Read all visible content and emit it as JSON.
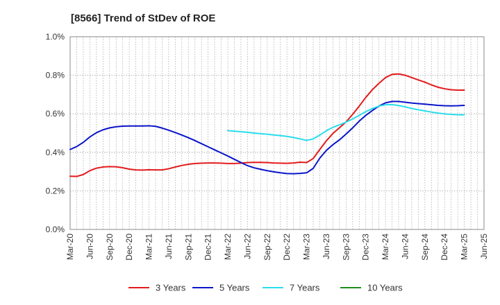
{
  "chart_data": {
    "type": "line",
    "title": "[8566]  Trend of StDev of ROE",
    "xlabel": "",
    "ylabel": "",
    "x_ticks": [
      "Mar-20",
      "Jun-20",
      "Sep-20",
      "Dec-20",
      "Mar-21",
      "Jun-21",
      "Sep-21",
      "Dec-21",
      "Mar-22",
      "Jun-22",
      "Sep-22",
      "Dec-22",
      "Mar-23",
      "Jun-23",
      "Sep-23",
      "Dec-23",
      "Mar-24",
      "Jun-24",
      "Sep-24",
      "Dec-24",
      "Mar-25",
      "Jun-25"
    ],
    "y_ticks": [
      "0.0%",
      "0.2%",
      "0.4%",
      "0.6%",
      "0.8%",
      "1.0%"
    ],
    "ylim": [
      0,
      1.0
    ],
    "grid": true,
    "legend_position": "bottom",
    "series": [
      {
        "name": "3 Years",
        "color": "#e31a1c",
        "points": [
          [
            "Mar-20",
            0.276
          ],
          [
            "Apr-20",
            0.275
          ],
          [
            "May-20",
            0.285
          ],
          [
            "Jun-20",
            0.305
          ],
          [
            "Jul-20",
            0.318
          ],
          [
            "Aug-20",
            0.324
          ],
          [
            "Sep-20",
            0.326
          ],
          [
            "Oct-20",
            0.325
          ],
          [
            "Nov-20",
            0.32
          ],
          [
            "Dec-20",
            0.313
          ],
          [
            "Jan-21",
            0.309
          ],
          [
            "Feb-21",
            0.308
          ],
          [
            "Mar-21",
            0.31
          ],
          [
            "Apr-21",
            0.309
          ],
          [
            "May-21",
            0.309
          ],
          [
            "Jun-21",
            0.315
          ],
          [
            "Jul-21",
            0.324
          ],
          [
            "Aug-21",
            0.332
          ],
          [
            "Sep-21",
            0.338
          ],
          [
            "Oct-21",
            0.342
          ],
          [
            "Nov-21",
            0.344
          ],
          [
            "Dec-21",
            0.345
          ],
          [
            "Jan-22",
            0.345
          ],
          [
            "Feb-22",
            0.344
          ],
          [
            "Mar-22",
            0.342
          ],
          [
            "Apr-22",
            0.342
          ],
          [
            "May-22",
            0.344
          ],
          [
            "Jun-22",
            0.347
          ],
          [
            "Jul-22",
            0.348
          ],
          [
            "Aug-22",
            0.348
          ],
          [
            "Sep-22",
            0.347
          ],
          [
            "Oct-22",
            0.345
          ],
          [
            "Nov-22",
            0.344
          ],
          [
            "Dec-22",
            0.343
          ],
          [
            "Jan-23",
            0.345
          ],
          [
            "Feb-23",
            0.349
          ],
          [
            "Mar-23",
            0.347
          ],
          [
            "Apr-23",
            0.368
          ],
          [
            "May-23",
            0.415
          ],
          [
            "Jun-23",
            0.46
          ],
          [
            "Jul-23",
            0.498
          ],
          [
            "Aug-23",
            0.528
          ],
          [
            "Sep-23",
            0.558
          ],
          [
            "Oct-23",
            0.597
          ],
          [
            "Nov-23",
            0.64
          ],
          [
            "Dec-23",
            0.685
          ],
          [
            "Jan-24",
            0.725
          ],
          [
            "Feb-24",
            0.758
          ],
          [
            "Mar-24",
            0.788
          ],
          [
            "Apr-24",
            0.805
          ],
          [
            "May-24",
            0.807
          ],
          [
            "Jun-24",
            0.8
          ],
          [
            "Jul-24",
            0.788
          ],
          [
            "Aug-24",
            0.776
          ],
          [
            "Sep-24",
            0.764
          ],
          [
            "Oct-24",
            0.75
          ],
          [
            "Nov-24",
            0.738
          ],
          [
            "Dec-24",
            0.73
          ],
          [
            "Jan-25",
            0.725
          ],
          [
            "Feb-25",
            0.723
          ],
          [
            "Mar-25",
            0.723
          ]
        ]
      },
      {
        "name": "5 Years",
        "color": "#0a14c8",
        "points": [
          [
            "Mar-20",
            0.415
          ],
          [
            "Apr-20",
            0.43
          ],
          [
            "May-20",
            0.452
          ],
          [
            "Jun-20",
            0.48
          ],
          [
            "Jul-20",
            0.502
          ],
          [
            "Aug-20",
            0.517
          ],
          [
            "Sep-20",
            0.527
          ],
          [
            "Oct-20",
            0.533
          ],
          [
            "Nov-20",
            0.536
          ],
          [
            "Dec-20",
            0.537
          ],
          [
            "Jan-21",
            0.537
          ],
          [
            "Feb-21",
            0.537
          ],
          [
            "Mar-21",
            0.538
          ],
          [
            "Apr-21",
            0.535
          ],
          [
            "May-21",
            0.526
          ],
          [
            "Jun-21",
            0.515
          ],
          [
            "Jul-21",
            0.503
          ],
          [
            "Aug-21",
            0.49
          ],
          [
            "Sep-21",
            0.476
          ],
          [
            "Oct-21",
            0.461
          ],
          [
            "Nov-21",
            0.445
          ],
          [
            "Dec-21",
            0.429
          ],
          [
            "Jan-22",
            0.413
          ],
          [
            "Feb-22",
            0.397
          ],
          [
            "Mar-22",
            0.381
          ],
          [
            "Apr-22",
            0.364
          ],
          [
            "May-22",
            0.347
          ],
          [
            "Jun-22",
            0.331
          ],
          [
            "Jul-22",
            0.32
          ],
          [
            "Aug-22",
            0.312
          ],
          [
            "Sep-22",
            0.305
          ],
          [
            "Oct-22",
            0.299
          ],
          [
            "Nov-22",
            0.294
          ],
          [
            "Dec-22",
            0.29
          ],
          [
            "Jan-23",
            0.289
          ],
          [
            "Feb-23",
            0.291
          ],
          [
            "Mar-23",
            0.294
          ],
          [
            "Apr-23",
            0.317
          ],
          [
            "May-23",
            0.37
          ],
          [
            "Jun-23",
            0.41
          ],
          [
            "Jul-23",
            0.44
          ],
          [
            "Aug-23",
            0.465
          ],
          [
            "Sep-23",
            0.495
          ],
          [
            "Oct-23",
            0.527
          ],
          [
            "Nov-23",
            0.562
          ],
          [
            "Dec-23",
            0.592
          ],
          [
            "Jan-24",
            0.617
          ],
          [
            "Feb-24",
            0.64
          ],
          [
            "Mar-24",
            0.657
          ],
          [
            "Apr-24",
            0.664
          ],
          [
            "May-24",
            0.664
          ],
          [
            "Jun-24",
            0.66
          ],
          [
            "Jul-24",
            0.656
          ],
          [
            "Aug-24",
            0.653
          ],
          [
            "Sep-24",
            0.65
          ],
          [
            "Oct-24",
            0.647
          ],
          [
            "Nov-24",
            0.644
          ],
          [
            "Dec-24",
            0.642
          ],
          [
            "Jan-25",
            0.641
          ],
          [
            "Feb-25",
            0.642
          ],
          [
            "Mar-25",
            0.644
          ]
        ]
      },
      {
        "name": "7 Years",
        "color": "#2adcec",
        "points": [
          [
            "Mar-22",
            0.513
          ],
          [
            "Apr-22",
            0.51
          ],
          [
            "May-22",
            0.507
          ],
          [
            "Jun-22",
            0.504
          ],
          [
            "Jul-22",
            0.5
          ],
          [
            "Aug-22",
            0.497
          ],
          [
            "Sep-22",
            0.494
          ],
          [
            "Oct-22",
            0.49
          ],
          [
            "Nov-22",
            0.487
          ],
          [
            "Dec-22",
            0.483
          ],
          [
            "Jan-23",
            0.477
          ],
          [
            "Feb-23",
            0.47
          ],
          [
            "Mar-23",
            0.462
          ],
          [
            "Apr-23",
            0.47
          ],
          [
            "May-23",
            0.49
          ],
          [
            "Jun-23",
            0.512
          ],
          [
            "Jul-23",
            0.53
          ],
          [
            "Aug-23",
            0.543
          ],
          [
            "Sep-23",
            0.557
          ],
          [
            "Oct-23",
            0.573
          ],
          [
            "Nov-23",
            0.592
          ],
          [
            "Dec-23",
            0.611
          ],
          [
            "Jan-24",
            0.627
          ],
          [
            "Feb-24",
            0.64
          ],
          [
            "Mar-24",
            0.647
          ],
          [
            "Apr-24",
            0.648
          ],
          [
            "May-24",
            0.643
          ],
          [
            "Jun-24",
            0.636
          ],
          [
            "Jul-24",
            0.628
          ],
          [
            "Aug-24",
            0.621
          ],
          [
            "Sep-24",
            0.615
          ],
          [
            "Oct-24",
            0.609
          ],
          [
            "Nov-24",
            0.604
          ],
          [
            "Dec-24",
            0.6
          ],
          [
            "Jan-25",
            0.597
          ],
          [
            "Feb-25",
            0.595
          ],
          [
            "Mar-25",
            0.595
          ]
        ]
      },
      {
        "name": "10 Years",
        "color": "#1e8c1e",
        "points": []
      }
    ]
  }
}
